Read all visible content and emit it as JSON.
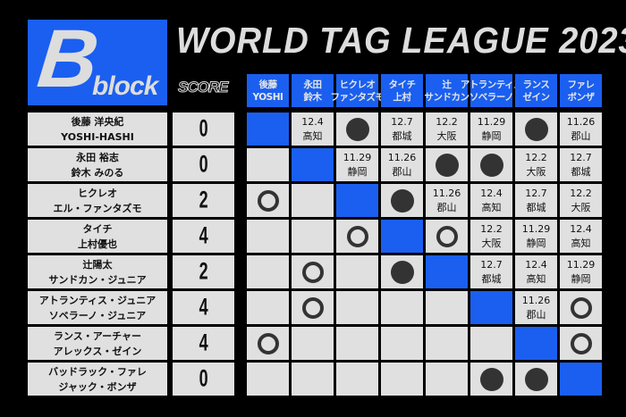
{
  "block": {
    "letter": "B",
    "word": "block"
  },
  "title": "WORLD TAG LEAGUE 2023",
  "score_label": "SCORE",
  "colors": {
    "accent": "#1a5ff0",
    "cell": "#e0e0e0",
    "mark": "#333333"
  },
  "columns": [
    [
      "後藤",
      "YOSHI"
    ],
    [
      "永田",
      "鈴木"
    ],
    [
      "ヒクレオ",
      "ファンタズモ"
    ],
    [
      "タイチ",
      "上村"
    ],
    [
      "辻",
      "サンドカン"
    ],
    [
      "アトランティス",
      "ソベラーノ"
    ],
    [
      "ランス",
      "ゼイン"
    ],
    [
      "ファレ",
      "ボンザ"
    ]
  ],
  "teams": [
    {
      "names": [
        "後藤 洋央紀",
        "YOSHI-HASHI"
      ],
      "score": "0",
      "results": [
        "self",
        [
          "12.4",
          "高知"
        ],
        "win",
        [
          "12.7",
          "都城"
        ],
        [
          "12.2",
          "大阪"
        ],
        [
          "11.29",
          "静岡"
        ],
        "win",
        [
          "11.26",
          "郡山"
        ]
      ]
    },
    {
      "names": [
        "永田 裕志",
        "鈴木 みのる"
      ],
      "score": "0",
      "results": [
        "",
        "self",
        [
          "11.29",
          "静岡"
        ],
        [
          "11.26",
          "郡山"
        ],
        "win",
        "win",
        [
          "12.2",
          "大阪"
        ],
        [
          "12.7",
          "都城"
        ]
      ]
    },
    {
      "names": [
        "ヒクレオ",
        "エル・ファンタズモ"
      ],
      "score": "2",
      "results": [
        "loss",
        "",
        "self",
        "win",
        [
          "11.26",
          "郡山"
        ],
        [
          "12.4",
          "高知"
        ],
        [
          "12.7",
          "都城"
        ],
        [
          "12.2",
          "大阪"
        ]
      ]
    },
    {
      "names": [
        "タイチ",
        "上村優也"
      ],
      "score": "4",
      "results": [
        "",
        "",
        "loss",
        "self",
        "loss",
        [
          "12.2",
          "大阪"
        ],
        [
          "11.29",
          "静岡"
        ],
        [
          "12.4",
          "高知"
        ]
      ]
    },
    {
      "names": [
        "辻陽太",
        "サンドカン・ジュニア"
      ],
      "score": "2",
      "results": [
        "",
        "loss",
        "",
        "win",
        "self",
        [
          "12.7",
          "都城"
        ],
        [
          "12.4",
          "高知"
        ],
        [
          "11.29",
          "静岡"
        ]
      ]
    },
    {
      "names": [
        "アトランティス・ジュニア",
        "ソベラーノ・ジュニア"
      ],
      "score": "4",
      "results": [
        "",
        "loss",
        "",
        "",
        "",
        "self",
        [
          "11.26",
          "郡山"
        ],
        "loss"
      ]
    },
    {
      "names": [
        "ランス・アーチャー",
        "アレックス・ゼイン"
      ],
      "score": "4",
      "results": [
        "loss",
        "",
        "",
        "",
        "",
        "",
        "self",
        "loss"
      ]
    },
    {
      "names": [
        "バッドラック・ファレ",
        "ジャック・ボンザ"
      ],
      "score": "0",
      "results": [
        "",
        "",
        "",
        "",
        "",
        "win",
        "win",
        "self"
      ]
    }
  ]
}
